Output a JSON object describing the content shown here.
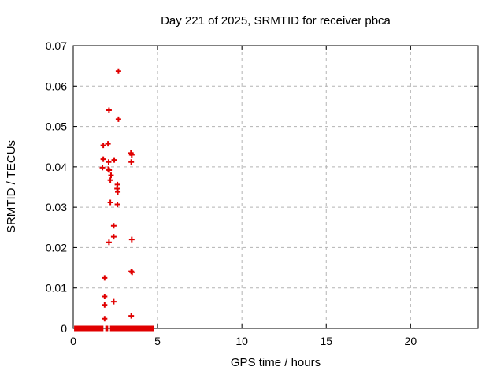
{
  "page": {
    "background": "#ffffff"
  },
  "chart_data": {
    "type": "scatter",
    "title": "Day 221 of 2025, SRMTID for receiver pbca",
    "xlabel": "GPS time / hours",
    "ylabel": "SRMTID / TECUs",
    "xlim": [
      0,
      24
    ],
    "ylim": [
      0,
      0.07
    ],
    "xticks": [
      0,
      5,
      10,
      15,
      20
    ],
    "xtick_labels": [
      "0",
      "5",
      "10",
      "15",
      "20"
    ],
    "yticks": [
      0,
      0.01,
      0.02,
      0.03,
      0.04,
      0.05,
      0.06,
      0.07
    ],
    "ytick_labels": [
      "0",
      "0.01",
      "0.02",
      "0.03",
      "0.04",
      "0.05",
      "0.06",
      "0.07"
    ],
    "grid": {
      "show": true,
      "style": "dashed",
      "color": "#b3b3b3"
    },
    "legend": "none",
    "axis_color": "#000000",
    "marker": {
      "shape": "plus",
      "color": "#e00000",
      "size": 7,
      "stroke": 2
    },
    "series": [
      {
        "name": "SRMTID",
        "points": [
          [
            2.68,
            0.0637
          ],
          [
            2.12,
            0.054
          ],
          [
            2.68,
            0.0518
          ],
          [
            2.06,
            0.0457
          ],
          [
            1.78,
            0.0453
          ],
          [
            3.42,
            0.0434
          ],
          [
            3.47,
            0.043
          ],
          [
            1.78,
            0.0419
          ],
          [
            2.43,
            0.0417
          ],
          [
            2.1,
            0.0412
          ],
          [
            3.44,
            0.0412
          ],
          [
            1.73,
            0.0398
          ],
          [
            2.08,
            0.0394
          ],
          [
            2.13,
            0.0392
          ],
          [
            2.24,
            0.0379
          ],
          [
            2.2,
            0.0367
          ],
          [
            2.62,
            0.0356
          ],
          [
            2.6,
            0.0346
          ],
          [
            2.64,
            0.0338
          ],
          [
            2.2,
            0.0312
          ],
          [
            2.62,
            0.0307
          ],
          [
            2.4,
            0.0254
          ],
          [
            2.4,
            0.0227
          ],
          [
            3.47,
            0.022
          ],
          [
            2.12,
            0.0213
          ],
          [
            3.44,
            0.0141
          ],
          [
            3.49,
            0.0139
          ],
          [
            1.86,
            0.0125
          ],
          [
            1.86,
            0.0079
          ],
          [
            2.4,
            0.0066
          ],
          [
            1.86,
            0.0058
          ],
          [
            3.44,
            0.0031
          ],
          [
            1.86,
            0.0024
          ]
        ],
        "zero_line_segments": [
          [
            0.05,
            1.79
          ],
          [
            1.9,
            2.07
          ],
          [
            2.18,
            4.77
          ]
        ]
      }
    ]
  }
}
